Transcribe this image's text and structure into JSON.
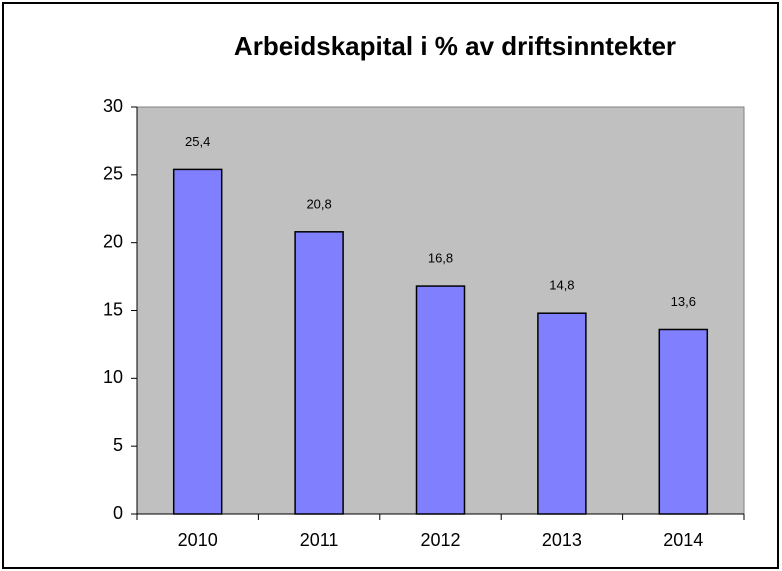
{
  "chart_data": {
    "type": "bar",
    "title": "Arbeidskapital i % av driftsinntekter",
    "categories": [
      "2010",
      "2011",
      "2012",
      "2013",
      "2014"
    ],
    "values": [
      25.4,
      20.8,
      16.8,
      14.8,
      13.6
    ],
    "value_labels": [
      "25,4",
      "20,8",
      "16,8",
      "14,8",
      "13,6"
    ],
    "color": "#8080ff",
    "plot_background": "#c0c0c0",
    "ylim": [
      0,
      30
    ],
    "yticks": [
      0,
      5,
      10,
      15,
      20,
      25,
      30
    ]
  }
}
